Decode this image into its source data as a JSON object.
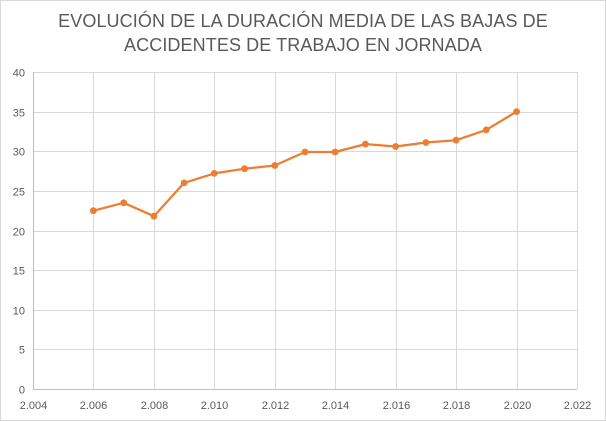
{
  "chart_data": {
    "type": "scatter",
    "title_lines": [
      "EVOLUCIÓN DE LA DURACIÓN MEDIA DE LAS BAJAS DE",
      "ACCIDENTES DE TRABAJO EN JORNADA"
    ],
    "xlabel": "",
    "ylabel": "",
    "xlim": [
      2004,
      2022
    ],
    "ylim": [
      0,
      40
    ],
    "x_ticks": [
      2004,
      2006,
      2008,
      2010,
      2012,
      2014,
      2016,
      2018,
      2020,
      2022
    ],
    "x_tick_labels": [
      "2.004",
      "2.006",
      "2.008",
      "2.010",
      "2.012",
      "2.014",
      "2.016",
      "2.018",
      "2.020",
      "2.022"
    ],
    "y_ticks": [
      0,
      5,
      10,
      15,
      20,
      25,
      30,
      35,
      40
    ],
    "y_tick_labels": [
      "0",
      "5",
      "10",
      "15",
      "20",
      "25",
      "30",
      "35",
      "40"
    ],
    "grid": true,
    "legend": "none",
    "series": [
      {
        "color": "#ED7D31",
        "x": [
          2006,
          2007,
          2008,
          2009,
          2010,
          2011,
          2012,
          2013,
          2014,
          2015,
          2016,
          2017,
          2018,
          2019,
          2020
        ],
        "y": [
          22.5,
          23.5,
          21.8,
          26.0,
          27.2,
          27.8,
          28.2,
          29.9,
          29.9,
          30.9,
          30.6,
          31.1,
          31.4,
          32.7,
          35.0
        ]
      }
    ]
  }
}
